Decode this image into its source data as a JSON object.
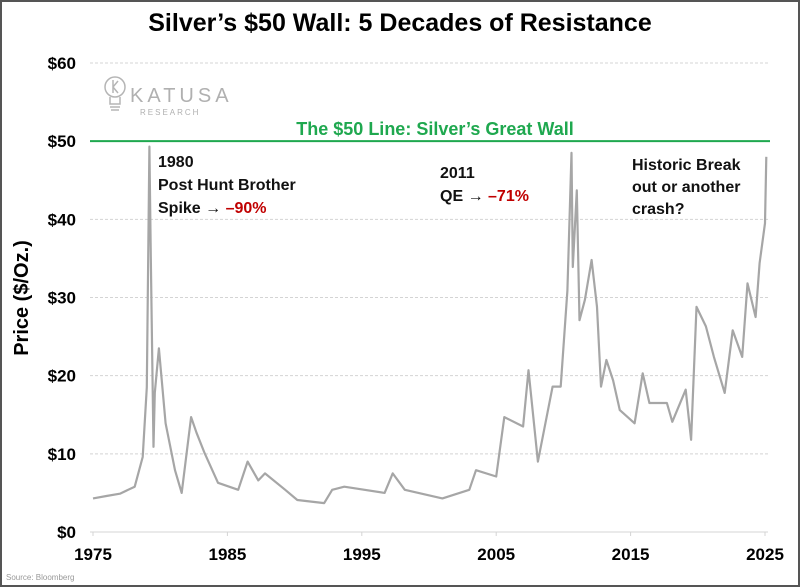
{
  "chart_data": {
    "type": "line",
    "title": "Silver’s $50 Wall: 5 Decades of Resistance",
    "ylabel": "Price ($/Oz.)",
    "xlabel": "",
    "xlim": [
      1975,
      2025
    ],
    "ylim": [
      0,
      60
    ],
    "x_ticks": [
      "1975",
      "1985",
      "1995",
      "2005",
      "2015",
      "2025"
    ],
    "y_ticks": [
      "$0",
      "$10",
      "$20",
      "$30",
      "$40",
      "$50",
      "$60"
    ],
    "grid": "horizontal dashed",
    "line_color": "#a6a6a6",
    "reference_line": {
      "value": 50,
      "label": "The $50 Line: Silver’s Great Wall",
      "color": "#1fa84f"
    },
    "annotations": [
      {
        "lines": [
          "1980",
          "Post Hunt Brother",
          "Spike → "
        ],
        "highlight": "–90%",
        "highlight_color": "#c00000"
      },
      {
        "lines": [
          "2011",
          "QE → "
        ],
        "highlight": "–71%",
        "highlight_color": "#c00000"
      },
      {
        "lines": [
          "Historic Break",
          "out or another",
          "crash?"
        ]
      }
    ],
    "source": "Source: Bloomberg",
    "logo": {
      "name": "KATUSA",
      "sub": "RESEARCH"
    },
    "series": [
      {
        "x": [
          1975,
          1976,
          1977,
          1978.1,
          1978.7,
          1979.0,
          1979.2,
          1979.3,
          1979.5,
          1979.6,
          1979.9,
          1980.4,
          1981.1,
          1981.6,
          1982.3,
          1982.7,
          1983.3,
          1984.3,
          1985.8,
          1986.5,
          1987.3,
          1987.8,
          1989.3,
          1990.2,
          1992.2,
          1992.8,
          1993.7,
          1996.7,
          1997.3,
          1998.2,
          2001.0,
          2003.0,
          2003.5,
          2005.0,
          2005.6,
          2007.0,
          2007.4,
          2008.1,
          2009.2,
          2009.8,
          2010.3,
          2010.6,
          2010.7,
          2011.0,
          2011.2,
          2011.6,
          2012.1,
          2012.5,
          2012.8,
          2013.2,
          2013.7,
          2014.2,
          2015.3,
          2015.9,
          2016.4,
          2017.7,
          2018.1,
          2019.1,
          2019.5,
          2019.9,
          2020.6,
          2021.2,
          2022.0,
          2022.6,
          2023.3,
          2023.7,
          2024.3,
          2024.6,
          2025.0,
          2025.1
        ],
        "y": [
          4.3,
          4.6,
          4.9,
          5.8,
          9.6,
          18.5,
          49.3,
          35.2,
          10.9,
          17.8,
          23.5,
          13.9,
          7.9,
          5.0,
          14.7,
          12.7,
          10.1,
          6.3,
          5.4,
          9.0,
          6.6,
          7.5,
          5.4,
          4.1,
          3.7,
          5.4,
          5.8,
          5.0,
          7.5,
          5.4,
          4.3,
          5.4,
          7.9,
          7.1,
          14.7,
          13.5,
          20.7,
          9.0,
          18.6,
          18.6,
          30.9,
          48.5,
          33.9,
          43.7,
          27.1,
          29.7,
          34.8,
          28.8,
          18.6,
          22.0,
          19.4,
          15.6,
          13.9,
          20.3,
          16.5,
          16.5,
          14.1,
          18.2,
          11.8,
          28.8,
          26.3,
          22.4,
          17.8,
          25.8,
          22.4,
          31.8,
          27.5,
          34.4,
          39.5,
          48.0
        ]
      }
    ]
  }
}
